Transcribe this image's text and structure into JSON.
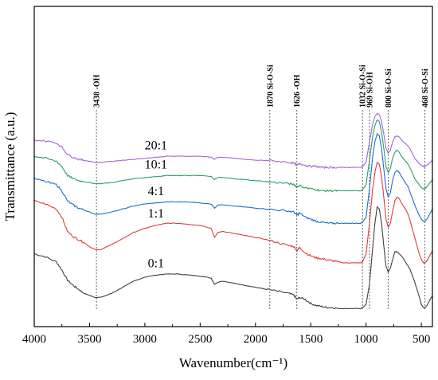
{
  "chart_data": {
    "type": "line",
    "xlabel": "Wavenumber(cm⁻¹)",
    "ylabel": "Transmittance (a.u.)",
    "xlim": [
      4000,
      400
    ],
    "x_reversed": true,
    "x_ticks": [
      4000,
      3500,
      3000,
      2500,
      2000,
      1500,
      1000,
      500
    ],
    "y_ticks": [],
    "ylim": [
      0,
      100
    ],
    "grid": false,
    "legend": "none",
    "x": [
      4000,
      3900,
      3800,
      3750,
      3700,
      3650,
      3600,
      3550,
      3500,
      3450,
      3400,
      3300,
      3200,
      3100,
      3000,
      2900,
      2800,
      2700,
      2600,
      2500,
      2400,
      2370,
      2340,
      2300,
      2200,
      2100,
      2000,
      1900,
      1800,
      1700,
      1650,
      1626,
      1600,
      1550,
      1500,
      1450,
      1400,
      1350,
      1300,
      1250,
      1200,
      1150,
      1100,
      1050,
      1032,
      1000,
      969,
      940,
      920,
      900,
      880,
      860,
      840,
      820,
      800,
      780,
      760,
      740,
      720,
      700,
      680,
      650,
      620,
      600,
      560,
      520,
      500,
      480,
      468,
      450,
      420,
      400
    ],
    "series": [
      {
        "name": "0:1",
        "label": "0:1",
        "color": "#404040",
        "values": [
          30.0,
          28.5,
          26.0,
          22.0,
          17.0,
          14.5,
          12.5,
          10.5,
          9.5,
          8.5,
          8.5,
          10.5,
          13.5,
          16.5,
          18.5,
          19.5,
          20.0,
          20.0,
          19.5,
          19.0,
          18.0,
          15.0,
          16.0,
          16.5,
          15.5,
          14.5,
          13.5,
          12.5,
          11.5,
          10.5,
          9.5,
          7.5,
          8.5,
          7.5,
          5.5,
          4.5,
          4.0,
          3.5,
          3.5,
          3.0,
          3.0,
          3.0,
          3.0,
          3.0,
          3.5,
          5.0,
          15.0,
          33.0,
          45.0,
          53.0,
          52.0,
          45.0,
          34.0,
          24.0,
          21.0,
          23.0,
          27.0,
          31.0,
          31.0,
          30.0,
          29.0,
          26.5,
          24.0,
          22.0,
          16.0,
          9.0,
          5.0,
          3.5,
          3.5,
          4.5,
          7.5,
          9.5
        ]
      },
      {
        "name": "1:1",
        "label": "1:1",
        "color": "#e03a3a",
        "values": [
          56.0,
          54.5,
          52.0,
          48.0,
          41.0,
          38.5,
          37.0,
          35.5,
          33.5,
          32.0,
          32.0,
          34.5,
          37.5,
          40.5,
          42.5,
          44.0,
          45.0,
          45.0,
          44.5,
          44.0,
          42.5,
          38.0,
          40.5,
          41.0,
          40.0,
          39.0,
          38.0,
          37.0,
          35.5,
          34.0,
          33.5,
          31.5,
          33.0,
          30.5,
          29.0,
          28.0,
          27.5,
          27.0,
          26.5,
          26.0,
          25.5,
          25.5,
          25.5,
          25.5,
          26.0,
          30.0,
          45.0,
          62.0,
          70.0,
          75.0,
          74.0,
          68.0,
          58.0,
          47.0,
          43.0,
          45.0,
          51.0,
          56.0,
          58.0,
          57.0,
          55.0,
          52.5,
          49.5,
          46.0,
          38.0,
          30.0,
          27.0,
          25.5,
          25.5,
          26.5,
          29.5,
          31.5
        ]
      },
      {
        "name": "4:1",
        "label": "4:1",
        "color": "#1a6fd1",
        "values": [
          67.0,
          65.5,
          64.0,
          61.0,
          56.0,
          54.0,
          52.5,
          51.5,
          50.5,
          49.5,
          49.5,
          50.5,
          52.0,
          53.5,
          54.5,
          55.0,
          55.5,
          55.5,
          55.5,
          55.0,
          54.5,
          52.5,
          54.0,
          54.0,
          53.5,
          53.0,
          52.5,
          52.0,
          51.5,
          51.0,
          50.5,
          49.0,
          50.0,
          48.0,
          47.0,
          46.0,
          45.5,
          45.0,
          45.0,
          45.0,
          45.0,
          45.0,
          45.0,
          45.0,
          45.5,
          48.0,
          62.0,
          78.0,
          85.0,
          89.0,
          88.0,
          82.0,
          72.0,
          62.0,
          58.0,
          60.0,
          66.0,
          70.0,
          71.0,
          70.0,
          68.0,
          65.5,
          63.0,
          60.0,
          54.0,
          49.0,
          47.0,
          46.0,
          46.0,
          47.0,
          50.0,
          52.0
        ]
      },
      {
        "name": "10:1",
        "label": "10:1",
        "color": "#2e9e5e",
        "values": [
          78.0,
          77.0,
          75.5,
          73.0,
          68.5,
          67.0,
          66.0,
          65.5,
          65.0,
          64.5,
          64.5,
          65.0,
          66.0,
          67.0,
          67.5,
          68.0,
          68.5,
          68.5,
          68.5,
          68.5,
          68.0,
          66.5,
          67.5,
          67.5,
          67.0,
          66.5,
          66.0,
          65.5,
          65.0,
          64.5,
          64.0,
          63.0,
          63.5,
          62.5,
          62.0,
          61.5,
          61.0,
          61.0,
          61.0,
          61.0,
          61.0,
          61.0,
          61.0,
          61.0,
          61.5,
          64.0,
          76.0,
          88.0,
          93.0,
          96.0,
          95.0,
          90.0,
          82.0,
          73.0,
          70.0,
          72.0,
          77.0,
          80.0,
          81.0,
          80.0,
          78.0,
          76.0,
          74.0,
          72.0,
          67.0,
          64.0,
          62.5,
          62.0,
          62.0,
          63.0,
          65.0,
          66.5
        ]
      },
      {
        "name": "20:1",
        "label": "20:1",
        "color": "#a066d8",
        "values": [
          86.0,
          85.5,
          84.5,
          82.5,
          79.0,
          77.5,
          76.5,
          76.0,
          75.5,
          75.0,
          75.0,
          75.5,
          76.0,
          76.5,
          77.0,
          77.5,
          78.0,
          78.0,
          78.0,
          78.0,
          77.5,
          76.5,
          77.5,
          77.5,
          77.0,
          76.5,
          76.0,
          76.0,
          75.5,
          75.0,
          74.5,
          73.5,
          74.5,
          73.5,
          73.0,
          73.0,
          72.5,
          72.5,
          72.5,
          72.5,
          72.5,
          72.5,
          72.5,
          72.5,
          73.0,
          75.0,
          85.0,
          94.0,
          97.5,
          99.0,
          98.5,
          95.0,
          89.0,
          82.0,
          79.5,
          81.0,
          85.0,
          87.5,
          88.0,
          87.5,
          86.0,
          84.5,
          83.0,
          81.5,
          77.0,
          74.5,
          73.5,
          73.0,
          73.0,
          73.5,
          75.0,
          76.0
        ]
      }
    ],
    "annotations": [
      {
        "x": 3438,
        "label": "3438 -OH"
      },
      {
        "x": 1870,
        "label": "1870 Si-O-Si"
      },
      {
        "x": 1626,
        "label": "1626 -OH"
      },
      {
        "x": 1032,
        "label": "1032 Si-O-Si"
      },
      {
        "x": 969,
        "label": "969 Si-OH"
      },
      {
        "x": 800,
        "label": "800 Si-O-Si"
      },
      {
        "x": 468,
        "label": "468 Si-O-Si"
      }
    ]
  }
}
